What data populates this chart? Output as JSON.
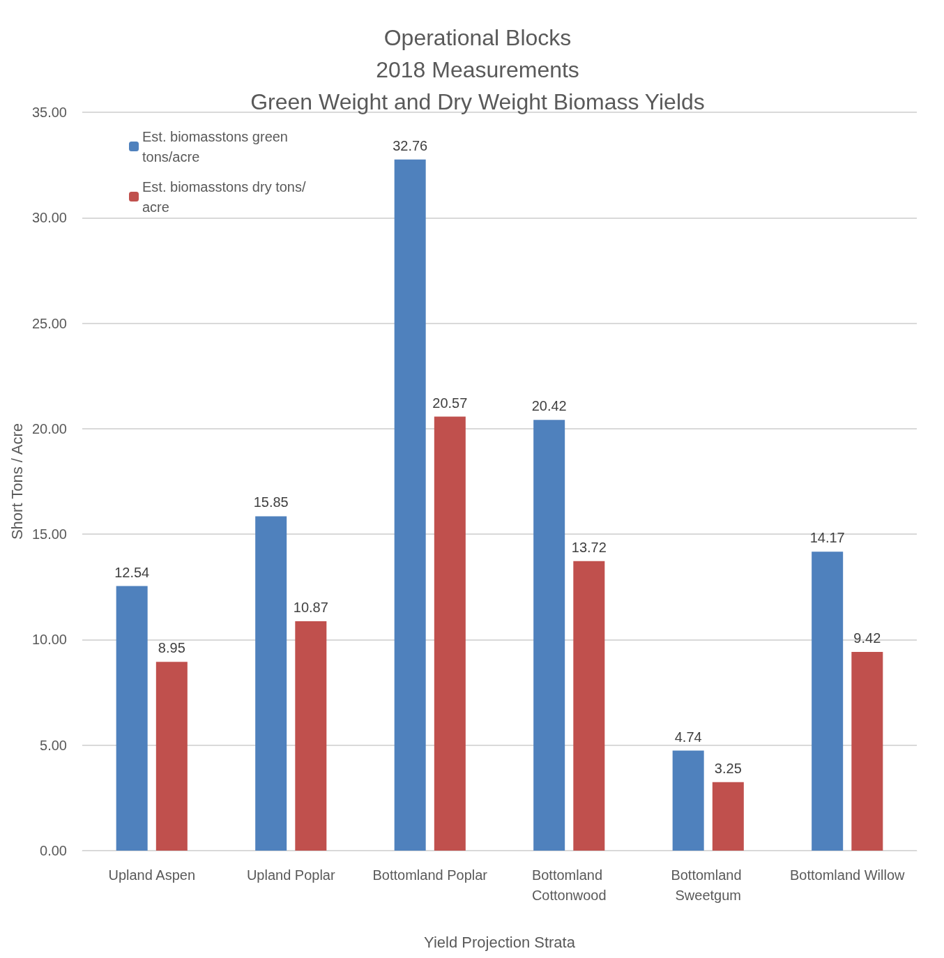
{
  "chart_data": {
    "type": "bar",
    "title": "Operational Blocks\n2018 Measurements\nGreen Weight and Dry Weight Biomass Yields",
    "xlabel": "Yield Projection Strata",
    "ylabel": "Short Tons / Acre",
    "categories": [
      "Upland Aspen",
      "Upland Poplar",
      "Bottomland Poplar",
      "Bottomland Cottonwood",
      "Bottomland Sweetgum",
      "Bottomland Willow"
    ],
    "series": [
      {
        "name": "Est. biomasstons green tons/acre",
        "color": "#4f81bd",
        "values": [
          12.54,
          15.85,
          32.76,
          20.42,
          4.74,
          14.17
        ]
      },
      {
        "name": "Est. biomasstons dry tons/acre",
        "color": "#c0504d",
        "values": [
          8.95,
          10.87,
          20.57,
          13.72,
          3.25,
          9.42
        ]
      }
    ],
    "ylim": [
      0,
      35
    ],
    "yticks": [
      {
        "value": 0,
        "label": "0.00"
      },
      {
        "value": 5,
        "label": "5.00"
      },
      {
        "value": 10,
        "label": "10.00"
      },
      {
        "value": 15,
        "label": "15.00"
      },
      {
        "value": 20,
        "label": "20.00"
      },
      {
        "value": 25,
        "label": "25.00"
      },
      {
        "value": 30,
        "label": "30.00"
      },
      {
        "value": 35,
        "label": "35.00"
      }
    ],
    "grid": "y",
    "legend": "top left",
    "data_labels": true
  }
}
